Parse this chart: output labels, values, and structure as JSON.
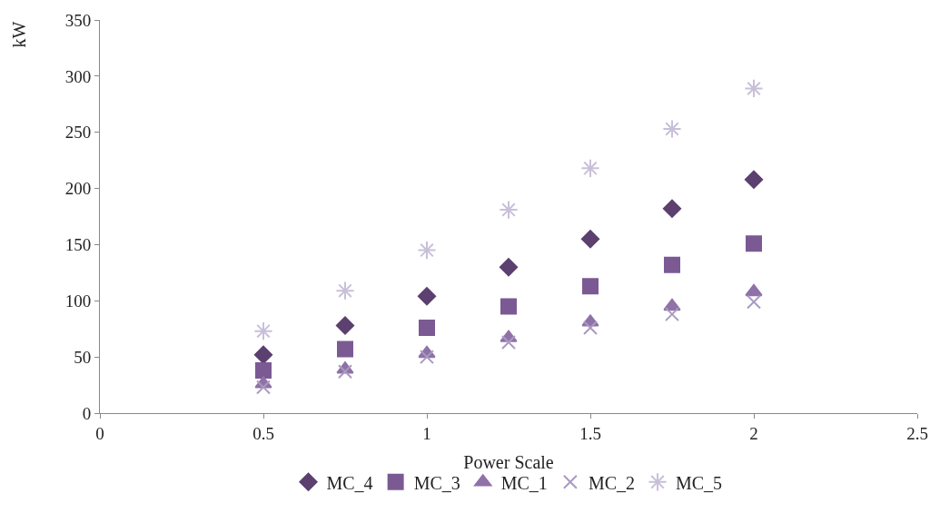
{
  "chart_data": {
    "type": "scatter",
    "xlabel": "Power Scale",
    "ylabel": "kW",
    "x": [
      0.5,
      0.75,
      1,
      1.25,
      1.5,
      1.75,
      2
    ],
    "series": [
      {
        "name": "MC_4",
        "color": "#5c406f",
        "marker": "diamond",
        "values": [
          52,
          78,
          104,
          130,
          155,
          182,
          208
        ]
      },
      {
        "name": "MC_3",
        "color": "#7b5a93",
        "marker": "square",
        "values": [
          38,
          57,
          76,
          95,
          113,
          132,
          151
        ]
      },
      {
        "name": "MC_1",
        "color": "#8f72a8",
        "marker": "triangle",
        "values": [
          26,
          39,
          53,
          67,
          81,
          95,
          108
        ]
      },
      {
        "name": "MC_2",
        "color": "#a99ac0",
        "marker": "cross",
        "values": [
          23,
          37,
          50,
          63,
          76,
          88,
          99
        ]
      },
      {
        "name": "MC_5",
        "color": "#c8c0d8",
        "marker": "cross",
        "values": [
          73,
          109,
          145,
          181,
          218,
          253,
          289
        ]
      }
    ],
    "xlim": [
      0,
      2.5
    ],
    "xticks": [
      0,
      0.5,
      1,
      1.5,
      2,
      2.5
    ],
    "ylim": [
      0,
      350
    ],
    "yticks": [
      0,
      50,
      100,
      150,
      200,
      250,
      300,
      350
    ],
    "legend": "bottom"
  }
}
